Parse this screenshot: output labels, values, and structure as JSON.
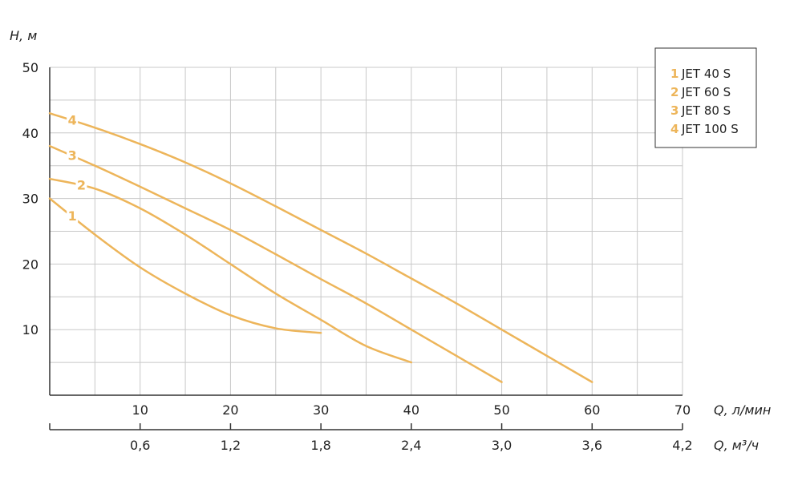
{
  "chart_data": {
    "type": "line",
    "y_axis": {
      "label": "H, м",
      "ticks": [
        "10",
        "20",
        "30",
        "40",
        "50"
      ],
      "ylim": [
        0,
        50
      ]
    },
    "x_axis": {
      "label": "Q, л/мин",
      "ticks": [
        "10",
        "20",
        "30",
        "40",
        "50",
        "60",
        "70"
      ],
      "xlim": [
        0,
        70
      ]
    },
    "x_axis_secondary": {
      "label": "Q, м³/ч",
      "ticks": [
        "0,6",
        "1,2",
        "1,8",
        "2,4",
        "3,0",
        "3,6",
        "4,2"
      ]
    },
    "grid": true,
    "legend_placement": "top-right",
    "color": "#EDB55A",
    "series": [
      {
        "id": "1",
        "name": "JET 40 S",
        "x": [
          0,
          5,
          10,
          15,
          20,
          25,
          30
        ],
        "y": [
          30,
          24.5,
          19.5,
          15.5,
          12.2,
          10.2,
          9.5
        ]
      },
      {
        "id": "2",
        "name": "JET 60 S",
        "x": [
          0,
          5,
          10,
          15,
          20,
          25,
          30,
          35,
          40
        ],
        "y": [
          33,
          31.5,
          28.5,
          24.5,
          20,
          15.5,
          11.5,
          7.5,
          5
        ]
      },
      {
        "id": "3",
        "name": "JET 80 S",
        "x": [
          0,
          5,
          10,
          15,
          20,
          25,
          30,
          35,
          40,
          45,
          50
        ],
        "y": [
          38,
          35,
          31.8,
          28.5,
          25.2,
          21.5,
          17.7,
          14,
          10,
          6,
          2
        ]
      },
      {
        "id": "4",
        "name": "JET 100 S",
        "x": [
          0,
          5,
          10,
          15,
          20,
          25,
          30,
          35,
          40,
          45,
          50,
          55,
          60
        ],
        "y": [
          43,
          40.8,
          38.3,
          35.5,
          32.3,
          28.8,
          25.2,
          21.6,
          17.8,
          14,
          10,
          6,
          2
        ]
      }
    ]
  }
}
